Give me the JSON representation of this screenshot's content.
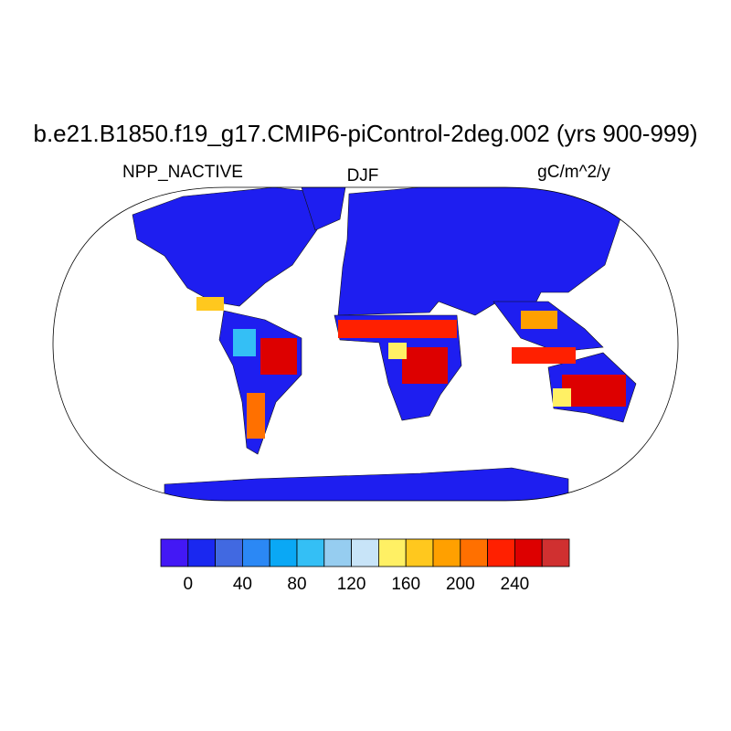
{
  "header": {
    "title": "b.e21.B1850.f19_g17.CMIP6-piControl-2deg.002 (yrs 900-999)",
    "left": "NPP_NACTIVE",
    "center": "DJF",
    "right": "gC/m^2/y"
  },
  "colorbar": {
    "colors": [
      "#4318f5",
      "#1a28f0",
      "#4169e1",
      "#2b88f5",
      "#0aa8f5",
      "#34bff5",
      "#96cdf0",
      "#c8e4f8",
      "#fff064",
      "#ffc81e",
      "#ffa000",
      "#ff7000",
      "#ff2000",
      "#dd0000",
      "#d03030"
    ],
    "lim": [
      -20,
      280
    ],
    "ticks": [
      0,
      40,
      80,
      120,
      160,
      200,
      240
    ]
  }
}
